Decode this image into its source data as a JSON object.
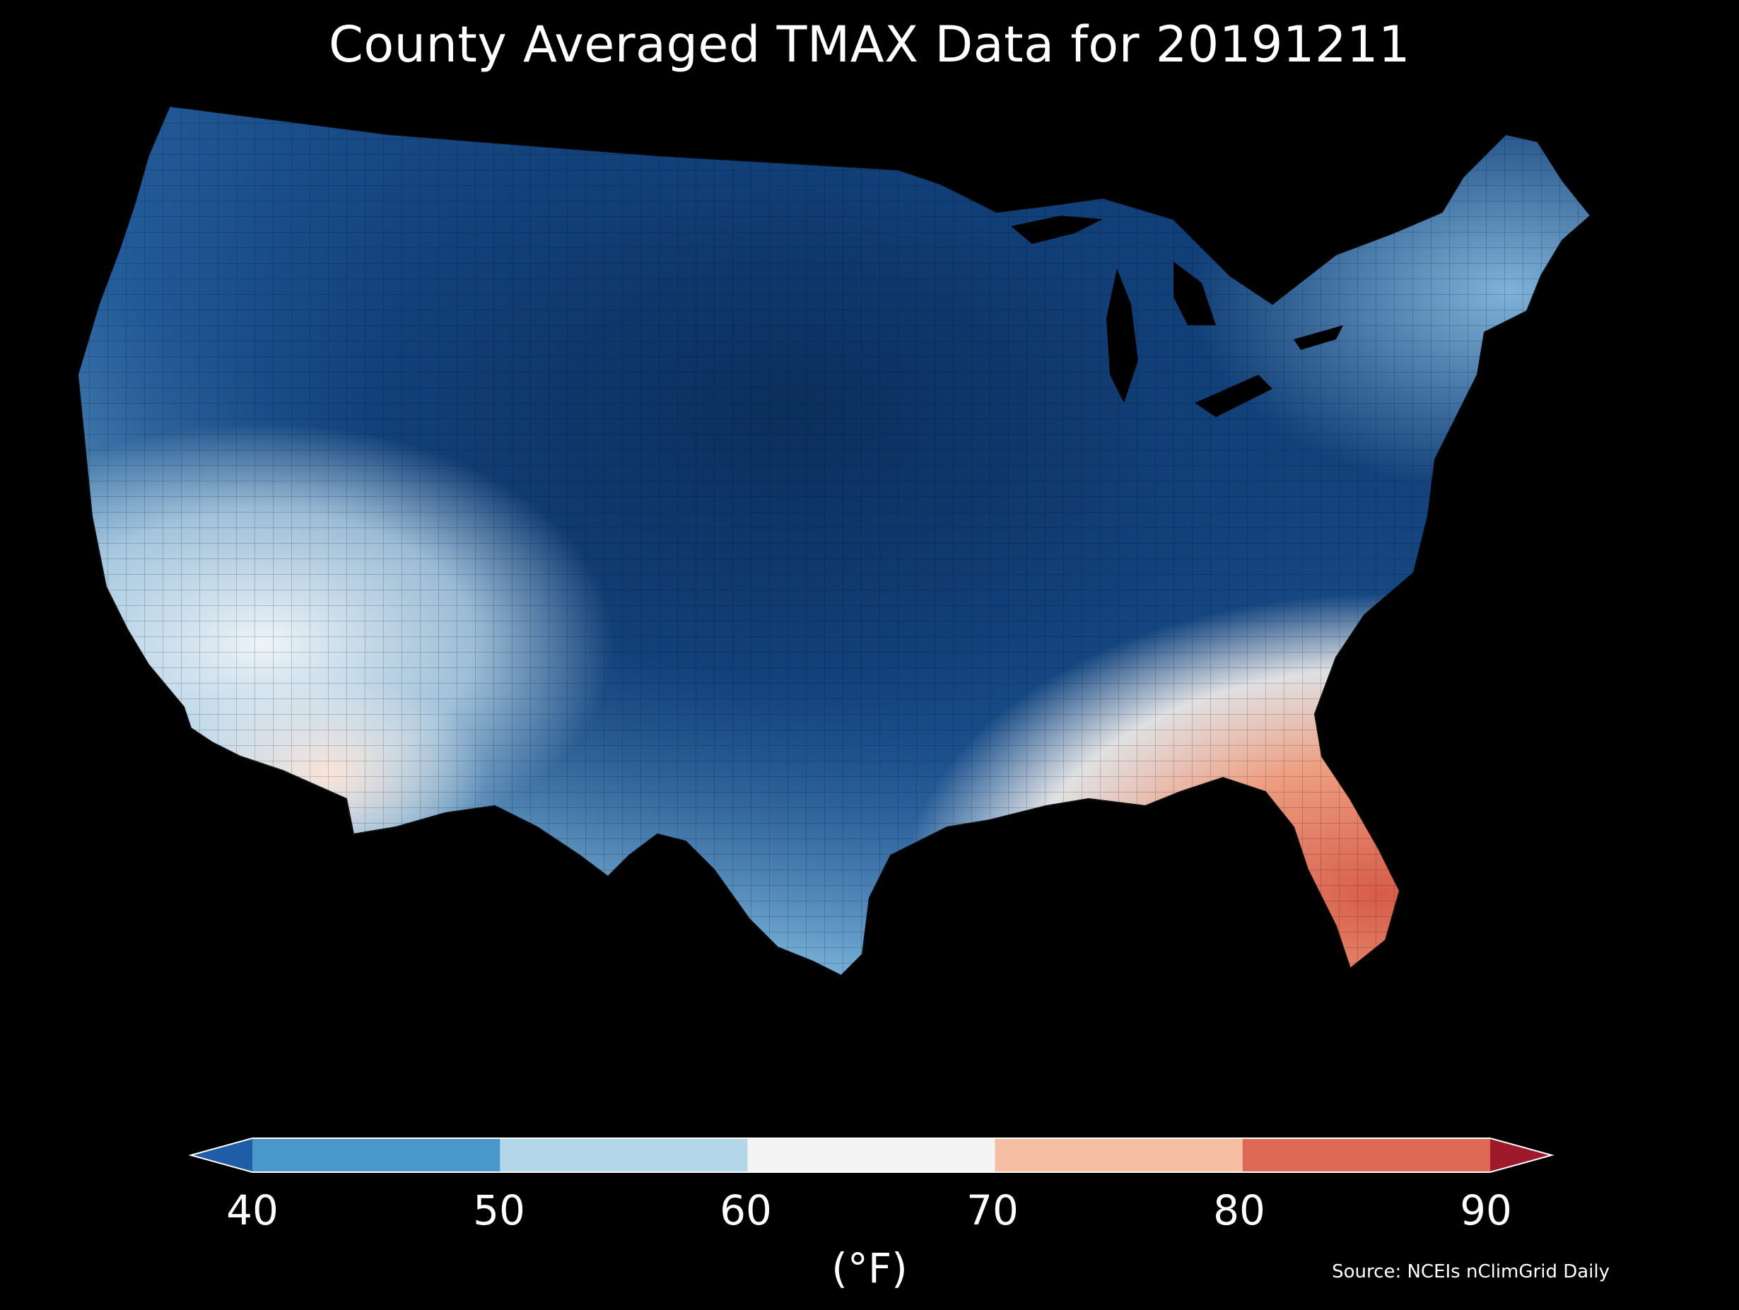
{
  "title": "County Averaged TMAX Data for 20191211",
  "colorbar": {
    "units_label": "(°F)",
    "ticks": [
      "40",
      "50",
      "60",
      "70",
      "80",
      "90"
    ],
    "bins": [
      {
        "range": "<40",
        "color": "#1f5da6"
      },
      {
        "range": "40-50",
        "color": "#4a97c9"
      },
      {
        "range": "50-60",
        "color": "#b4d6e9"
      },
      {
        "range": "60-70",
        "color": "#f4f4f4"
      },
      {
        "range": "70-80",
        "color": "#f6bfa3"
      },
      {
        "range": "80-90",
        "color": "#dc6a56"
      },
      {
        "range": ">90",
        "color": "#9e1a2b"
      }
    ]
  },
  "source": "Source: NCEIs nClimGrid Daily",
  "map": {
    "region": "Contiguous United States",
    "variable": "TMAX",
    "date": "20191211",
    "colors": {
      "background": "#000000",
      "coldest": "#0b2f5c",
      "cold": "#2b6aab",
      "cool": "#4f97c8",
      "mild": "#a9d0e6",
      "neutral": "#f2f2f2",
      "warm": "#f4b89b",
      "hot": "#d85f4c"
    }
  }
}
